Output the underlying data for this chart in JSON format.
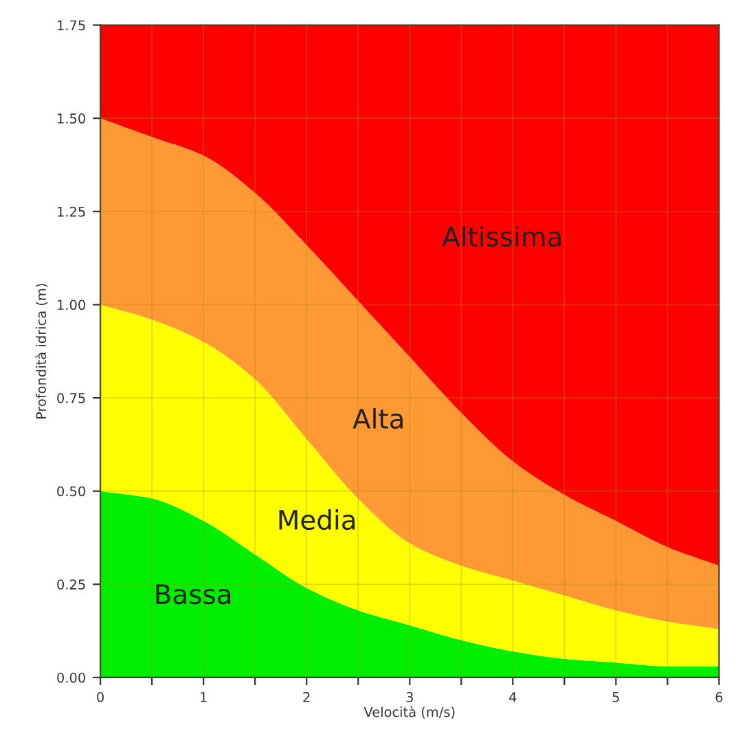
{
  "chart_data": {
    "type": "area",
    "stacked": true,
    "xlabel": "Velocità (m/s)",
    "ylabel": "Profondità idrica (m)",
    "x": [
      0,
      0.5,
      1,
      1.5,
      2,
      2.5,
      3,
      3.5,
      4,
      4.5,
      5,
      5.5,
      6
    ],
    "series": [
      {
        "name": "Bassa",
        "color": "#00ee00",
        "values": [
          0.5,
          0.48,
          0.42,
          0.33,
          0.24,
          0.18,
          0.14,
          0.1,
          0.07,
          0.05,
          0.04,
          0.03,
          0.03
        ]
      },
      {
        "name": "Media",
        "color": "#ffff00",
        "values": [
          0.5,
          0.48,
          0.48,
          0.47,
          0.4,
          0.3,
          0.22,
          0.2,
          0.19,
          0.17,
          0.14,
          0.12,
          0.1
        ]
      },
      {
        "name": "Alta",
        "color": "#ff9933",
        "values": [
          0.5,
          0.49,
          0.5,
          0.5,
          0.52,
          0.53,
          0.5,
          0.41,
          0.32,
          0.27,
          0.24,
          0.2,
          0.17
        ]
      },
      {
        "name": "Altissima",
        "color": "#ff0000",
        "values": [
          0.25,
          0.3,
          0.35,
          0.45,
          0.59,
          0.74,
          0.89,
          1.04,
          1.17,
          1.26,
          1.33,
          1.4,
          1.45
        ]
      }
    ],
    "xlim": [
      0,
      6
    ],
    "ylim": [
      0,
      1.75
    ],
    "xticks": [
      0,
      {
        "value": 0.5,
        "label": null
      },
      1,
      {
        "value": 1.5,
        "label": null
      },
      2,
      {
        "value": 2.5,
        "label": null
      },
      3,
      {
        "value": 3.5,
        "label": null
      },
      4,
      {
        "value": 4.5,
        "label": null
      },
      5,
      {
        "value": 5.5,
        "label": null
      },
      6
    ],
    "yticks": [
      {
        "value": 0,
        "label": "0.00"
      },
      {
        "value": 0.25,
        "label": "0.25"
      },
      {
        "value": 0.5,
        "label": "0.50"
      },
      {
        "value": 0.75,
        "label": "0.75"
      },
      {
        "value": 1.0,
        "label": "1.00"
      },
      {
        "value": 1.25,
        "label": "1.25"
      },
      {
        "value": 1.5,
        "label": "1.50"
      },
      {
        "value": 1.75,
        "label": "1.75"
      }
    ],
    "grid": true,
    "legend": false
  }
}
